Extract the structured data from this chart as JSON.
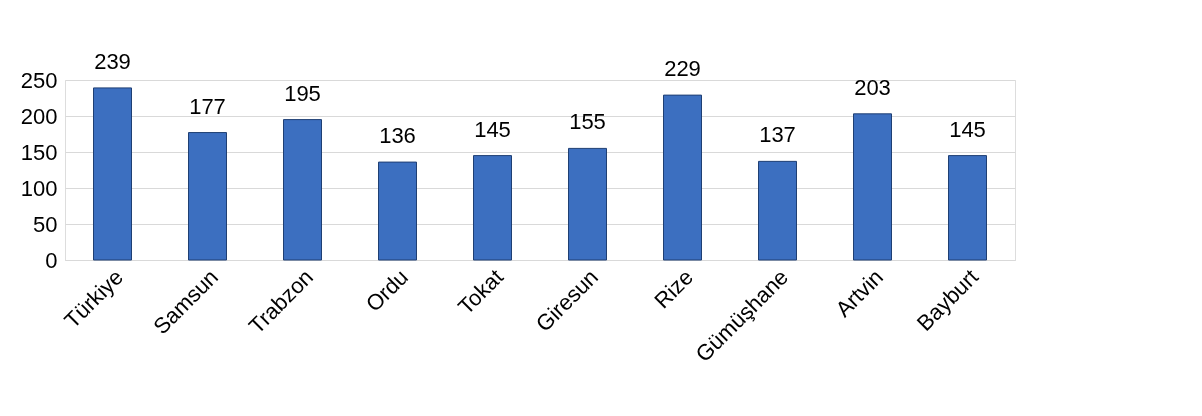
{
  "chart_data": {
    "type": "bar",
    "categories": [
      "Türkiye",
      "Samsun",
      "Trabzon",
      "Ordu",
      "Tokat",
      "Giresun",
      "Rize",
      "Gümüşhane",
      "Artvin",
      "Bayburt"
    ],
    "values": [
      239,
      177,
      195,
      136,
      145,
      155,
      229,
      137,
      203,
      145
    ],
    "color": "#3c6fc0",
    "ylim": [
      0,
      250
    ],
    "yticks": [
      0,
      50,
      100,
      150,
      200,
      250
    ],
    "grid": "y",
    "data_labels": true
  }
}
